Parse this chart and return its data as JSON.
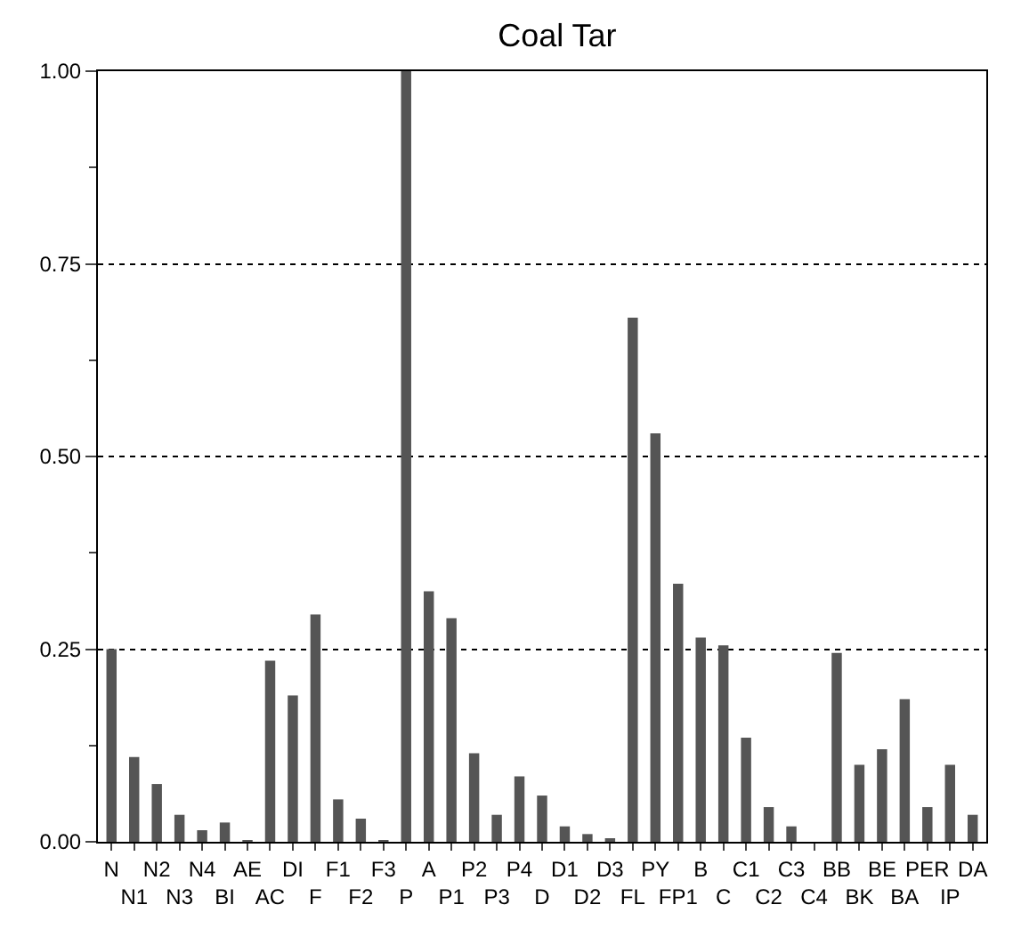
{
  "chart_data": {
    "type": "bar",
    "title": "Coal Tar",
    "categories": [
      "N",
      "N1",
      "N2",
      "N3",
      "N4",
      "BI",
      "AE",
      "AC",
      "DI",
      "F",
      "F1",
      "F2",
      "F3",
      "P",
      "A",
      "P1",
      "P2",
      "P3",
      "P4",
      "D",
      "D1",
      "D2",
      "D3",
      "FL",
      "PY",
      "FP1",
      "B",
      "C",
      "C1",
      "C2",
      "C3",
      "C4",
      "BB",
      "BK",
      "BE",
      "BA",
      "PER",
      "IP",
      "DA"
    ],
    "values": [
      0.25,
      0.11,
      0.075,
      0.035,
      0.015,
      0.025,
      0.002,
      0.235,
      0.19,
      0.295,
      0.055,
      0.03,
      0.002,
      1.0,
      0.325,
      0.29,
      0.115,
      0.035,
      0.085,
      0.06,
      0.02,
      0.01,
      0.003,
      0.68,
      0.53,
      0.335,
      0.265,
      0.255,
      0.135,
      0.045,
      0.02,
      0,
      0.245,
      0.1,
      0.12,
      0.185,
      0.045,
      0.1,
      0.035
    ],
    "color": "#555555",
    "ylim": [
      0,
      1
    ],
    "yticks": [
      {
        "value": 0,
        "label": "0.00"
      },
      {
        "value": 0.25,
        "label": "0.25"
      },
      {
        "value": 0.5,
        "label": "0.50"
      },
      {
        "value": 0.75,
        "label": "0.75"
      },
      {
        "value": 1,
        "label": "1.00"
      }
    ],
    "grid": "y"
  }
}
